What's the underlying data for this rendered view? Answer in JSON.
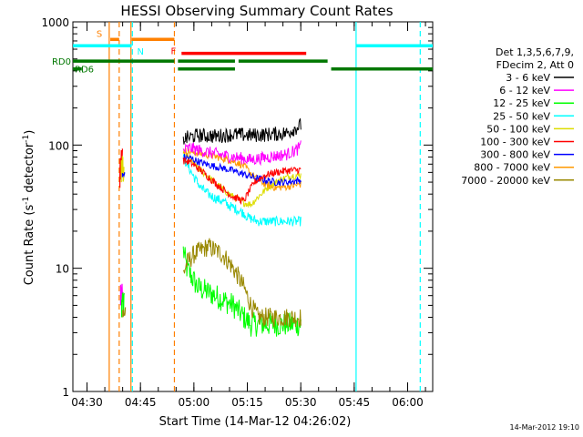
{
  "chart_data": {
    "type": "line",
    "title": "HESSI Observing Summary Count Rates",
    "xlabel": "Start Time (14-Mar-12 04:26:02)",
    "ylabel": "Count Rate (s",
    "ylabel_sup1": "-1",
    "ylabel_mid": " detector",
    "ylabel_sup2": "-1",
    "ylabel_end": ")",
    "yscale": "log",
    "ylim": [
      1,
      1000
    ],
    "xlim_minutes": [
      0,
      101
    ],
    "x_ticks": [
      {
        "label": "04:30",
        "min": 3.97
      },
      {
        "label": "04:45",
        "min": 18.97
      },
      {
        "label": "05:00",
        "min": 33.97
      },
      {
        "label": "05:15",
        "min": 48.97
      },
      {
        "label": "05:30",
        "min": 63.97
      },
      {
        "label": "05:45",
        "min": 78.97
      },
      {
        "label": "06:00",
        "min": 93.97
      }
    ],
    "y_ticks": [
      {
        "label": "1",
        "value": 1
      },
      {
        "label": "10",
        "value": 10
      },
      {
        "label": "100",
        "value": 100
      },
      {
        "label": "1000",
        "value": 1000
      }
    ],
    "legend": {
      "header": [
        "Det 1,3,5,6,7,9,",
        "FDecim 2, Att 0"
      ],
      "position": "right"
    },
    "series": [
      {
        "name": "3 - 6 keV",
        "color": "#000000",
        "points": [
          [
            31,
            112
          ],
          [
            35,
            120
          ],
          [
            40,
            118
          ],
          [
            45,
            122
          ],
          [
            50,
            120
          ],
          [
            55,
            122
          ],
          [
            60,
            125
          ],
          [
            62,
            135
          ],
          [
            64,
            145
          ]
        ],
        "noise": 0.06
      },
      {
        "name": "6 - 12 keV",
        "color": "#ff00ff",
        "points": [
          [
            31,
            90
          ],
          [
            33,
            95
          ],
          [
            36,
            90
          ],
          [
            40,
            85
          ],
          [
            45,
            80
          ],
          [
            50,
            76
          ],
          [
            55,
            80
          ],
          [
            60,
            84
          ],
          [
            63,
            92
          ],
          [
            64,
            98
          ]
        ],
        "noise": 0.05
      },
      {
        "name": "12 - 25 keV",
        "color": "#00ff00",
        "points": [
          [
            31,
            14
          ],
          [
            32,
            10
          ],
          [
            35,
            7
          ],
          [
            40,
            6
          ],
          [
            45,
            5
          ],
          [
            48,
            4
          ],
          [
            50,
            3.5
          ],
          [
            55,
            3.5
          ],
          [
            60,
            3.5
          ],
          [
            64,
            3.5
          ]
        ],
        "noise": 0.1
      },
      {
        "name": "25 - 50 keV",
        "color": "#00ffff",
        "points": [
          [
            31,
            80
          ],
          [
            32,
            70
          ],
          [
            34,
            55
          ],
          [
            36,
            45
          ],
          [
            38,
            40
          ],
          [
            40,
            37
          ],
          [
            42,
            35
          ],
          [
            44,
            32
          ],
          [
            46,
            30
          ],
          [
            48,
            28
          ],
          [
            49,
            26
          ],
          [
            52,
            24
          ],
          [
            56,
            24
          ],
          [
            60,
            24
          ],
          [
            64,
            24
          ]
        ],
        "noise": 0.04
      },
      {
        "name": "50 - 100 keV",
        "color": "#dddd00",
        "points": [
          [
            31,
            90
          ],
          [
            33,
            75
          ],
          [
            36,
            62
          ],
          [
            39,
            52
          ],
          [
            42,
            44
          ],
          [
            45,
            38
          ],
          [
            48,
            34
          ],
          [
            50,
            33
          ],
          [
            52,
            38
          ],
          [
            55,
            46
          ],
          [
            58,
            52
          ],
          [
            61,
            56
          ],
          [
            64,
            57
          ]
        ],
        "noise": 0.03
      },
      {
        "name": "100 - 300 keV",
        "color": "#ff0000",
        "points": [
          [
            31,
            75
          ],
          [
            33,
            72
          ],
          [
            36,
            62
          ],
          [
            39,
            52
          ],
          [
            42,
            44
          ],
          [
            45,
            38
          ],
          [
            48,
            35
          ],
          [
            49,
            40
          ],
          [
            51,
            50
          ],
          [
            54,
            57
          ],
          [
            57,
            60
          ],
          [
            60,
            62
          ],
          [
            64,
            63
          ]
        ],
        "noise": 0.03
      },
      {
        "name": "300 - 800 keV",
        "color": "#0000ff",
        "points": [
          [
            31,
            80
          ],
          [
            33,
            78
          ],
          [
            36,
            72
          ],
          [
            39,
            68
          ],
          [
            42,
            65
          ],
          [
            45,
            62
          ],
          [
            48,
            58
          ],
          [
            51,
            54
          ],
          [
            54,
            52
          ],
          [
            57,
            50
          ],
          [
            60,
            50
          ],
          [
            64,
            52
          ]
        ],
        "noise": 0.03
      },
      {
        "name": "800 - 7000 keV",
        "color": "#ff9900",
        "points": [
          [
            31,
            90
          ],
          [
            33,
            88
          ],
          [
            36,
            85
          ],
          [
            39,
            82
          ],
          [
            42,
            78
          ],
          [
            45,
            74
          ],
          [
            48,
            68
          ],
          [
            51,
            55
          ],
          [
            54,
            48
          ],
          [
            57,
            45
          ],
          [
            60,
            46
          ],
          [
            64,
            48
          ]
        ],
        "noise": 0.03
      },
      {
        "name": "7000 - 20000 keV",
        "color": "#998800",
        "points": [
          [
            31,
            9
          ],
          [
            32,
            11
          ],
          [
            34,
            13
          ],
          [
            36,
            14
          ],
          [
            38,
            15
          ],
          [
            40,
            14
          ],
          [
            42,
            13
          ],
          [
            44,
            11
          ],
          [
            46,
            9
          ],
          [
            48,
            7
          ],
          [
            50,
            5
          ],
          [
            52,
            4
          ],
          [
            55,
            4
          ],
          [
            60,
            4
          ],
          [
            64,
            4
          ]
        ],
        "noise": 0.08
      }
    ],
    "bursts": [
      {
        "color": "#ff0000",
        "min": 13.2,
        "lo": 45,
        "hi": 95
      },
      {
        "color": "#dddd00",
        "min": 13.6,
        "lo": 50,
        "hi": 85
      },
      {
        "color": "#0000ff",
        "min": 13.9,
        "lo": 55,
        "hi": 60
      },
      {
        "color": "#ff00ff",
        "min": 13.4,
        "lo": 5,
        "hi": 8
      },
      {
        "color": "#00ff00",
        "min": 13.7,
        "lo": 4,
        "hi": 7
      },
      {
        "color": "#998800",
        "min": 14.0,
        "lo": 4,
        "hi": 5
      }
    ],
    "flag_bars": [
      {
        "label": "S",
        "label_color": "#ff8000",
        "color": "#ff8000",
        "segments": [
          [
            10.5,
            13.0
          ],
          [
            16.5,
            28.5
          ]
        ],
        "level": 720
      },
      {
        "label": "N",
        "label_color": "#00ffff",
        "color": "#00ffff",
        "segments": [
          [
            0,
            16.5
          ],
          [
            79.5,
            101
          ]
        ],
        "level": 640
      },
      {
        "label": "F",
        "label_color": "#ff0000",
        "color": "#ff0000",
        "segments": [
          [
            30.5,
            65.5
          ]
        ],
        "level": 555
      },
      {
        "label": "RD0",
        "label_color": "#007700",
        "color": "#007700",
        "segments": [
          [
            0,
            28.5
          ],
          [
            29.5,
            45.5
          ],
          [
            46.5,
            71.5
          ]
        ],
        "level": 480
      },
      {
        "label": "RD6",
        "label_color": "#007700",
        "color": "#007700",
        "segments": [
          [
            0,
            2.5
          ],
          [
            29.5,
            45.5
          ],
          [
            72.5,
            101
          ]
        ],
        "level": 415
      }
    ],
    "vlines": [
      {
        "min": 10.2,
        "color": "#ff8000",
        "dash": false
      },
      {
        "min": 13.0,
        "color": "#ff8000",
        "dash": true
      },
      {
        "min": 16.3,
        "color": "#ff8000",
        "dash": false
      },
      {
        "min": 16.7,
        "color": "#00ffff",
        "dash": true
      },
      {
        "min": 28.5,
        "color": "#ff8000",
        "dash": true
      },
      {
        "min": 79.5,
        "color": "#00ffff",
        "dash": false
      },
      {
        "min": 97.5,
        "color": "#00ffff",
        "dash": true
      }
    ],
    "footer": "14-Mar-2012 19:10"
  }
}
